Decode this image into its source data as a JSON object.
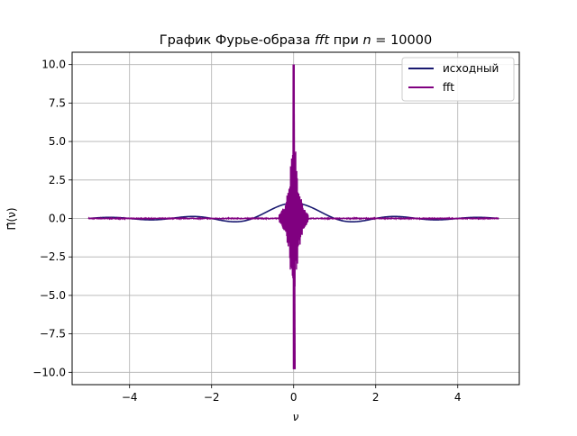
{
  "chart_data": {
    "type": "line",
    "title": "График Фурье-образа fft при n = 10000",
    "title_parts": {
      "prefix": "График Фурье-образа ",
      "italic_word": "fft",
      "middle": " при ",
      "var": "n",
      "equals": " = ",
      "value": "10000"
    },
    "xlabel": "ν",
    "ylabel": "Π̂(ν)",
    "xlim": [
      -5.4,
      5.5
    ],
    "ylim": [
      -10.8,
      10.8
    ],
    "x_ticks": [
      -4,
      -2,
      0,
      2,
      4
    ],
    "x_tick_labels": [
      "−4",
      "−2",
      "0",
      "2",
      "4"
    ],
    "y_ticks": [
      -10,
      -7.5,
      -5,
      -2.5,
      0,
      2.5,
      5,
      7.5,
      10
    ],
    "y_tick_labels": [
      "−10.0",
      "−7.5",
      "−5.0",
      "−2.5",
      "0.0",
      "2.5",
      "5.0",
      "7.5",
      "10.0"
    ],
    "grid": true,
    "legend_position": "top-right",
    "series": [
      {
        "name": "исходный",
        "color": "#191970",
        "description_function": "sinc",
        "x_range": [
          -5,
          5
        ],
        "samples": 800,
        "key_points": {
          "x": [
            -5,
            -4.5,
            -3.5,
            -2.5,
            -1.5,
            -1,
            0,
            1,
            1.5,
            2.5,
            3.5,
            4.5,
            5
          ],
          "y": [
            0,
            0.07,
            -0.09,
            0.13,
            -0.21,
            0,
            1.0,
            0,
            -0.21,
            0.13,
            -0.09,
            0.07,
            0
          ]
        }
      },
      {
        "name": "fft",
        "color": "#800080",
        "x_range": [
          -5,
          5
        ],
        "spike_center": 0,
        "spike_max": 10.0,
        "spike_min": -9.8,
        "spike_width": 0.06,
        "baseline_noise": 0.05,
        "key_points": {
          "x": [
            -5,
            -0.3,
            -0.05,
            0,
            0.02,
            0.05,
            0.3,
            5
          ],
          "y": [
            0,
            0.1,
            2.5,
            10.0,
            -9.8,
            -2.5,
            -0.1,
            0
          ]
        }
      }
    ]
  }
}
